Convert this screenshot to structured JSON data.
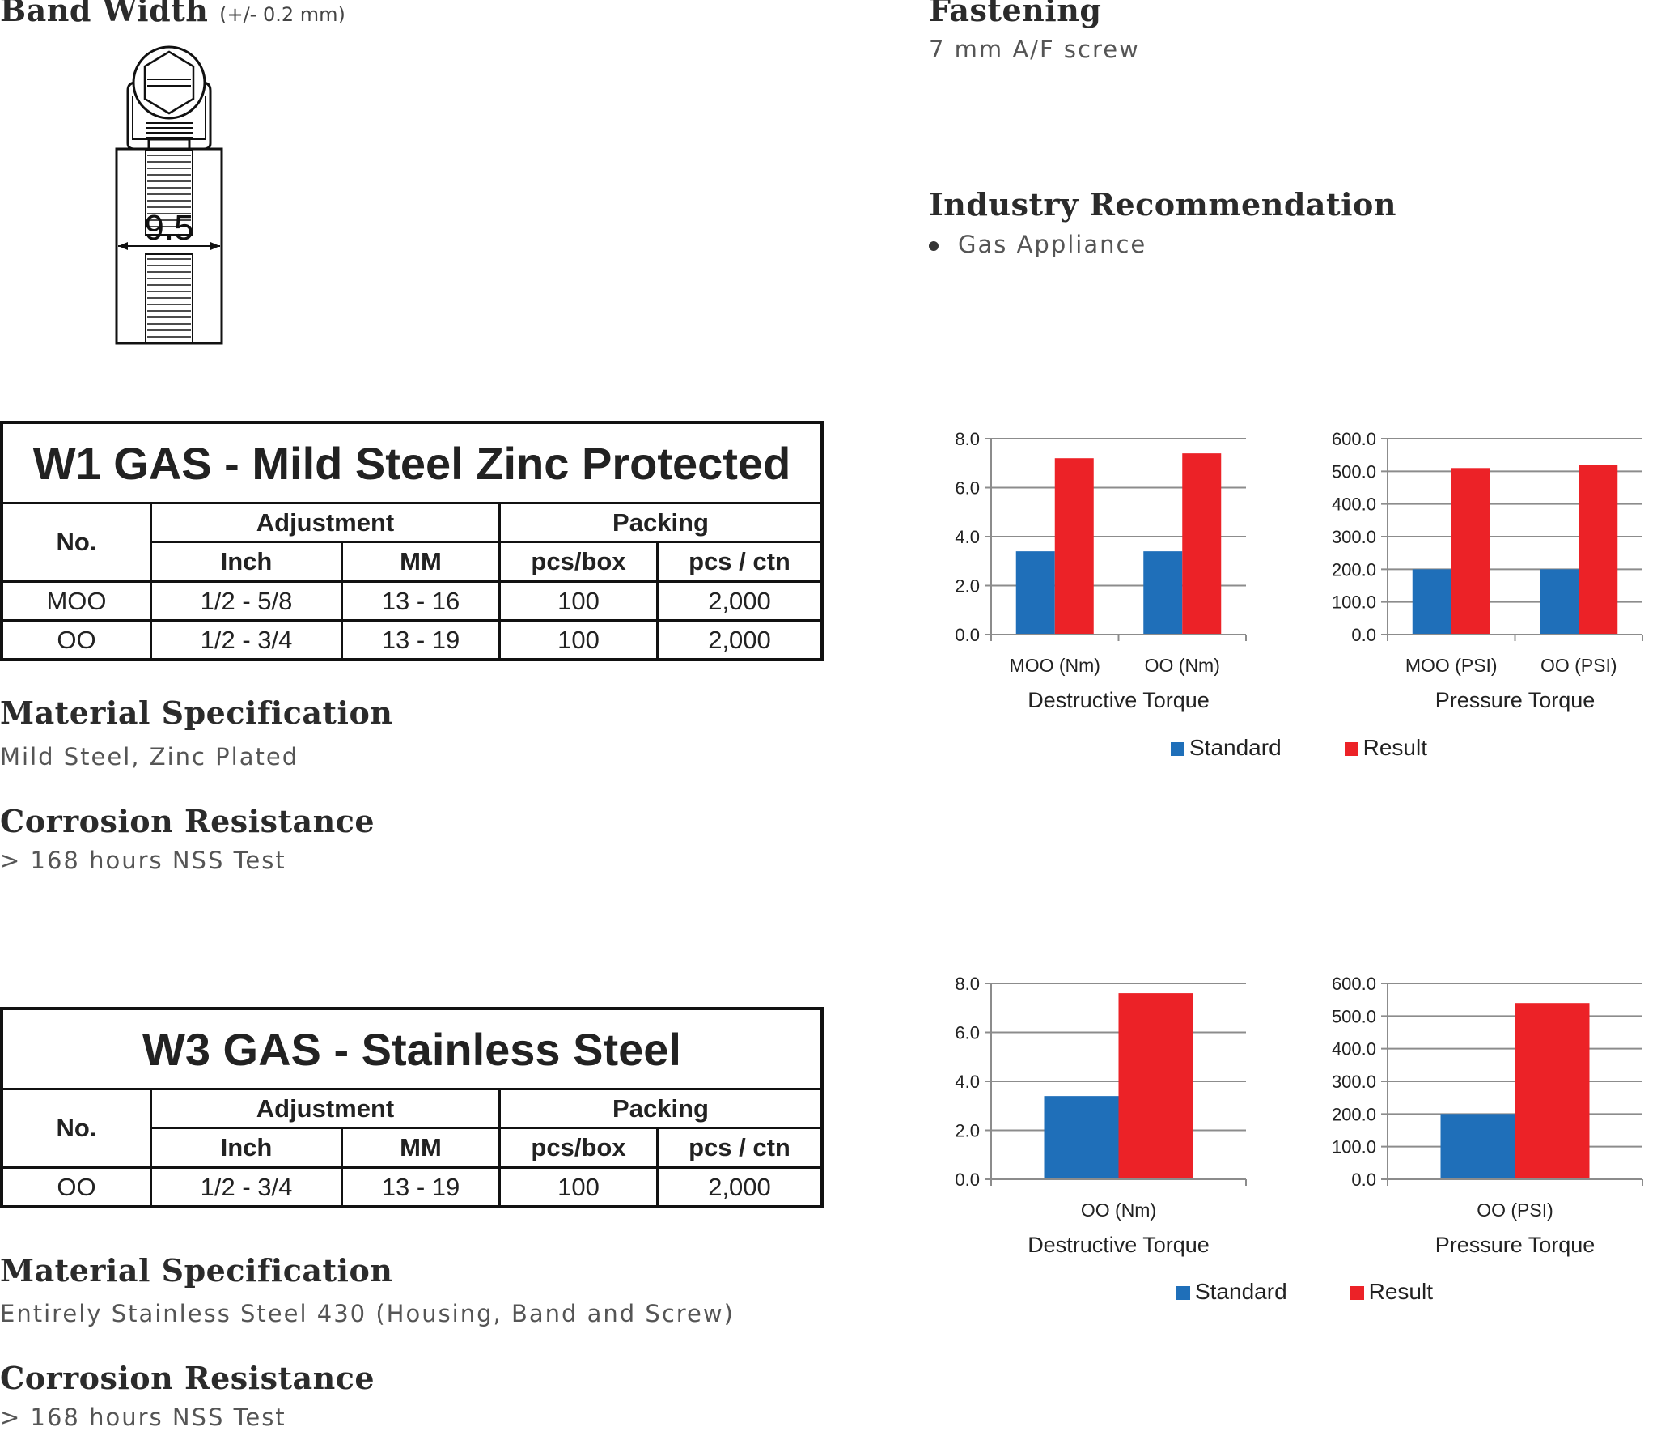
{
  "band_width": {
    "title": "Band Width",
    "tolerance": "(+/- 0.2 mm)",
    "dimension": "9.5"
  },
  "fastening": {
    "title": "Fastening",
    "text": "7 mm A/F screw"
  },
  "industry": {
    "title": "Industry Recommendation",
    "items": [
      "Gas Appliance"
    ]
  },
  "colors": {
    "standard": "#1f6fb9",
    "result": "#ec2227",
    "grid": "#8c8c8c"
  },
  "w1": {
    "title": "W1 GAS - Mild Steel Zinc Protected",
    "headers": {
      "no": "No.",
      "adjustment": "Adjustment",
      "packing": "Packing",
      "inch": "Inch",
      "mm": "MM",
      "pcs_box": "pcs/box",
      "pcs_ctn": "pcs / ctn"
    },
    "rows": [
      [
        "MOO",
        "1/2 - 5/8",
        "13 - 16",
        "100",
        "2,000"
      ],
      [
        "OO",
        "1/2 - 3/4",
        "13 - 19",
        "100",
        "2,000"
      ]
    ],
    "material": {
      "title": "Material Specification",
      "text": "Mild Steel, Zinc Plated"
    },
    "corrosion": {
      "title": "Corrosion Resistance",
      "text": "> 168 hours NSS Test"
    }
  },
  "w3": {
    "title": "W3 GAS - Stainless Steel",
    "headers": {
      "no": "No.",
      "adjustment": "Adjustment",
      "packing": "Packing",
      "inch": "Inch",
      "mm": "MM",
      "pcs_box": "pcs/box",
      "pcs_ctn": "pcs / ctn"
    },
    "rows": [
      [
        "OO",
        "1/2 - 3/4",
        "13 - 19",
        "100",
        "2,000"
      ]
    ],
    "material": {
      "title": "Material Specification",
      "text": "Entirely Stainless Steel 430 (Housing, Band and Screw)"
    },
    "corrosion": {
      "title": "Corrosion Resistance",
      "text": "> 168 hours NSS Test"
    }
  },
  "legend": {
    "standard": "Standard",
    "result": "Result"
  },
  "chart_data": [
    {
      "id": "w1-torque",
      "type": "bar",
      "title": "Destructive Torque",
      "categories": [
        "MOO (Nm)",
        "OO (Nm)"
      ],
      "series": [
        {
          "name": "Standard",
          "values": [
            3.4,
            3.4
          ]
        },
        {
          "name": "Result",
          "values": [
            7.2,
            7.4
          ]
        }
      ],
      "ylim": [
        0,
        8
      ],
      "yticks": [
        "0.0",
        "2.0",
        "4.0",
        "6.0",
        "8.0"
      ]
    },
    {
      "id": "w1-pressure",
      "type": "bar",
      "title": "Pressure Torque",
      "categories": [
        "MOO (PSI)",
        "OO (PSI)"
      ],
      "series": [
        {
          "name": "Standard",
          "values": [
            200,
            200
          ]
        },
        {
          "name": "Result",
          "values": [
            510,
            520
          ]
        }
      ],
      "ylim": [
        0,
        600
      ],
      "yticks": [
        "0.0",
        "100.0",
        "200.0",
        "300.0",
        "400.0",
        "500.0",
        "600.0"
      ]
    },
    {
      "id": "w3-torque",
      "type": "bar",
      "title": "Destructive Torque",
      "categories": [
        "OO (Nm)"
      ],
      "series": [
        {
          "name": "Standard",
          "values": [
            3.4
          ]
        },
        {
          "name": "Result",
          "values": [
            7.6
          ]
        }
      ],
      "ylim": [
        0,
        8
      ],
      "yticks": [
        "0.0",
        "2.0",
        "4.0",
        "6.0",
        "8.0"
      ]
    },
    {
      "id": "w3-pressure",
      "type": "bar",
      "title": "Pressure Torque",
      "categories": [
        "OO (PSI)"
      ],
      "series": [
        {
          "name": "Standard",
          "values": [
            200
          ]
        },
        {
          "name": "Result",
          "values": [
            540
          ]
        }
      ],
      "ylim": [
        0,
        600
      ],
      "yticks": [
        "0.0",
        "100.0",
        "200.0",
        "300.0",
        "400.0",
        "500.0",
        "600.0"
      ]
    }
  ]
}
